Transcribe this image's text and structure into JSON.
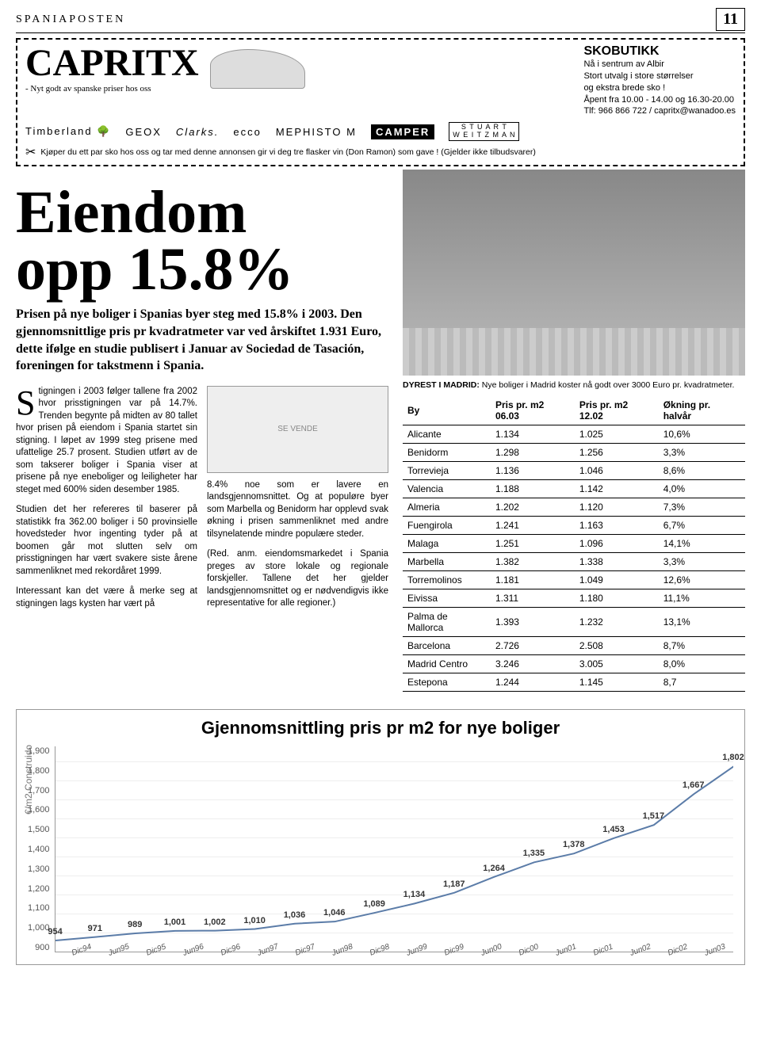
{
  "publication": "SPANIAPOSTEN",
  "page_number": "11",
  "ad": {
    "logo": "CAPRITX",
    "tagline": "- Nyt godt av spanske priser hos oss",
    "head": "SKOBUTIKK",
    "l1": "Nå i sentrum av Albir",
    "l2": "Stort utvalg i store størrelser",
    "l3": "og ekstra brede sko !",
    "l4": "Åpent fra 10.00 - 14.00 og 16.30-20.00",
    "l5": "Tlf: 966 866 722 / capritx@wanadoo.es",
    "brands": [
      "Timberland 🌳",
      "GEOX",
      "Clarks.",
      "ecco",
      "MEPHISTO M",
      "CAMPER"
    ],
    "sw1": "S T U A R T",
    "sw2": "W E I T Z M A N",
    "footer": "Kjøper du ett par sko hos oss og tar med denne annonsen gir vi deg tre flasker vin (Don Ramon) som gave ! (Gjelder ikke tilbudsvarer)"
  },
  "headline_l1": "Eiendom",
  "headline_l2": "opp 15.8%",
  "lead": "Prisen på nye boliger i Spanias byer steg med 15.8% i 2003. Den gjennomsnittlige pris pr kvadratmeter var ved årskiftet 1.931 Euro, dette ifølge en studie publisert i Januar av Sociedad de Tasación, foreningen for takstmenn i Spania.",
  "body": {
    "dropcap": "S",
    "p1_rest": "tigningen i 2003 følger tallene fra 2002 hvor prisstigningen var på 14.7%. Trenden begynte på midten av 80 tallet hvor prisen på eiendom i Spania startet sin stigning. I løpet av 1999 steg prisene med ufattelige 25.7 prosent. Studien utført av de som takserer boliger i Spania viser at prisene på nye eneboliger og leiligheter har steget med 600% siden desember 1985.",
    "p2": "Studien det her refereres til baserer på statistikk fra 362.00 boliger i 50 provinsielle hovedsteder hvor ingenting tyder på at boomen går mot slutten selv om prisstigningen har vært svakere siste årene sammenliknet med rekordåret 1999.",
    "p3": "Interessant kan det være å merke seg at stigningen lags kysten har vært på",
    "p4": "8.4% noe som er lavere en landsgjennomsnittet. Og at populøre byer som Marbella og Benidorm har opplevd svak økning i prisen sammenliknet med andre tilsynelatende mindre populære steder.",
    "p5": "(Red. anm. eiendomsmarkedet i Spania preges av store lokale og regionale forskjeller. Tallene det her gjelder landsgjennomsnittet og er nødvendigvis ikke representative for alle regioner.)"
  },
  "caption_bold": "DYREST I MADRID:",
  "caption_text": " Nye boliger i Madrid koster nå godt over 3000 Euro pr. kvadratmeter.",
  "table": {
    "h1": "By",
    "h2": "Pris pr. m2 06.03",
    "h3": "Pris pr. m2 12.02",
    "h4": "Økning pr. halvår",
    "rows": [
      [
        "Alicante",
        "1.134",
        "1.025",
        "10,6%"
      ],
      [
        "Benidorm",
        "1.298",
        "1.256",
        "3,3%"
      ],
      [
        "Torrevieja",
        "1.136",
        "1.046",
        "8,6%"
      ],
      [
        "Valencia",
        "1.188",
        "1.142",
        "4,0%"
      ],
      [
        "Almeria",
        "1.202",
        "1.120",
        "7,3%"
      ],
      [
        "Fuengirola",
        "1.241",
        "1.163",
        "6,7%"
      ],
      [
        "Malaga",
        "1.251",
        "1.096",
        "14,1%"
      ],
      [
        "Marbella",
        "1.382",
        "1.338",
        "3,3%"
      ],
      [
        "Torremolinos",
        "1.181",
        "1.049",
        "12,6%"
      ],
      [
        "Eivissa",
        "1.311",
        "1.180",
        "11,1%"
      ],
      [
        "Palma de Mallorca",
        "1.393",
        "1.232",
        "13,1%"
      ],
      [
        "Barcelona",
        "2.726",
        "2.508",
        "8,7%"
      ],
      [
        "Madrid Centro",
        "3.246",
        "3.005",
        "8,0%"
      ],
      [
        "Estepona",
        "1.244",
        "1.145",
        "8,7"
      ]
    ]
  },
  "chart": {
    "title": "Gjennomsnittling pris pr m2 for nye boliger",
    "ylabel": "€/m2 Construido",
    "ymin": 900,
    "ymax": 1900,
    "yticks": [
      "1,900",
      "1,800",
      "1,700",
      "1,600",
      "1,500",
      "1,400",
      "1,300",
      "1,200",
      "1,100",
      "1,000",
      "900"
    ],
    "x_labels": [
      "Dic94",
      "Jun95",
      "Dic95",
      "Jun96",
      "Dic96",
      "Jun97",
      "Dic97",
      "Jun98",
      "Dic98",
      "Jun99",
      "Dic99",
      "Jun00",
      "Dic00",
      "Jun01",
      "Dic01",
      "Jun02",
      "Dic02",
      "Jun03"
    ],
    "values": [
      954,
      971,
      989,
      1001,
      1002,
      1010,
      1036,
      1046,
      1089,
      1134,
      1187,
      1264,
      1335,
      1378,
      1453,
      1517,
      1667,
      1802
    ],
    "line_color": "#5b7ca8",
    "line_width": 2,
    "grid_color": "#eeeeee",
    "label_color": "#333333"
  }
}
